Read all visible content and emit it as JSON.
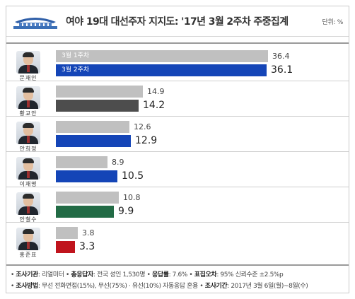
{
  "header": {
    "title": "여야 19대 대선주자 지지도: '17년 3월 2주차 주중집계",
    "unit": "단위: %",
    "logo_icon": "blue-house-icon"
  },
  "chart_data": {
    "type": "bar",
    "orientation": "horizontal",
    "categories": [
      "문재인",
      "황교안",
      "안희정",
      "이재명",
      "안철수",
      "홍준표"
    ],
    "series": [
      {
        "name": "3월 1주차",
        "values": [
          36.4,
          14.9,
          12.6,
          8.9,
          10.8,
          3.8
        ],
        "color": "#c0c0c0"
      },
      {
        "name": "3월 2주차",
        "values": [
          36.1,
          14.2,
          12.9,
          10.5,
          9.9,
          3.3
        ]
      }
    ],
    "second_week_colors": [
      "#1445b7",
      "#4d4d4d",
      "#1445b7",
      "#1445b7",
      "#226b45",
      "#c0141d"
    ],
    "value_labels": {
      "week1": [
        "36.4",
        "14.9",
        "12.6",
        "8.9",
        "10.8",
        "3.8"
      ],
      "week2": [
        "36.1",
        "14.2",
        "12.9",
        "10.5",
        "9.9",
        "3.3"
      ]
    },
    "xlim": [
      0,
      40
    ],
    "grid": false,
    "legend": "inside-first-bars"
  },
  "footer": {
    "line1": [
      {
        "label": "조사기관",
        "value": ": 리얼미터"
      },
      {
        "label": "총응답자",
        "value": ": 전국 성인 1,530명"
      },
      {
        "label": "응답률",
        "value": ": 7.6%"
      },
      {
        "label": "표집오차",
        "value": ": 95% 신뢰수준 ±2.5%p"
      }
    ],
    "line2": [
      {
        "label": "조사방법",
        "value": ": 무선 전화면접(15%), 무선(75%) · 유선(10%) 자동응답 혼용"
      },
      {
        "label": "조사기간",
        "value": ": 2017년 3월 6일(월)~8일(수)"
      }
    ]
  }
}
